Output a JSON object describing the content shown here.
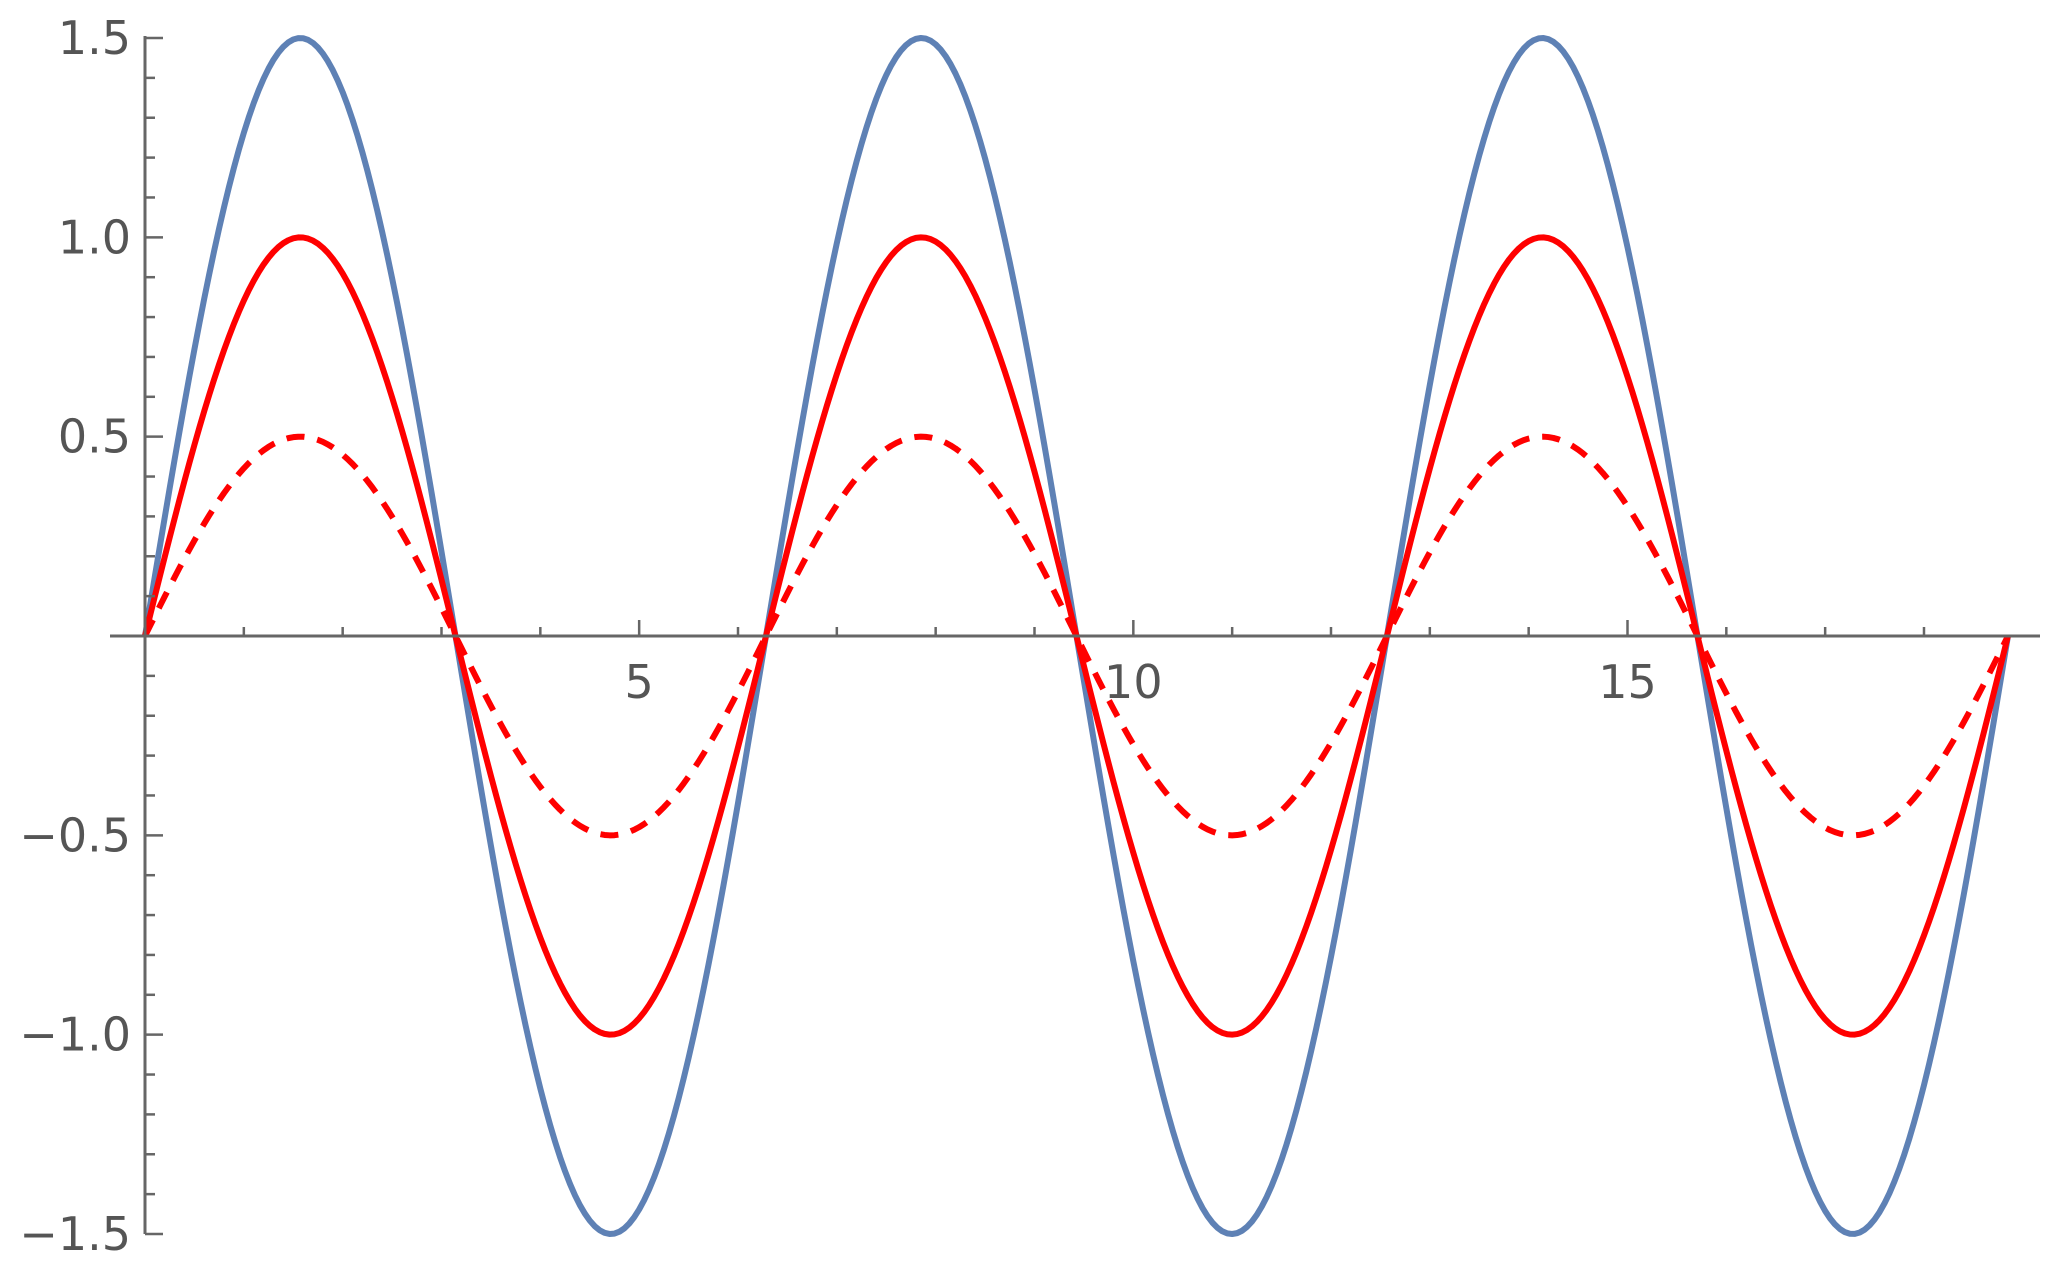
{
  "chart_data": {
    "type": "line",
    "title": "",
    "xlabel": "",
    "ylabel": "",
    "xlim": [
      0,
      18.85
    ],
    "ylim": [
      -1.5,
      1.5
    ],
    "grid": false,
    "x_ticks": [
      5,
      10,
      15
    ],
    "x_tick_labels": [
      "5",
      "10",
      "15"
    ],
    "y_ticks": [
      -1.5,
      -1.0,
      -0.5,
      0.5,
      1.0,
      1.5
    ],
    "y_tick_labels": [
      "−1.5",
      "−1.0",
      "−0.5",
      "0.5",
      "1.0",
      "1.5"
    ],
    "x_minor_step": 1,
    "y_minor_step": 0.1,
    "sample_x_step": 0.05,
    "series": [
      {
        "function": "1.5 sin(x)",
        "amplitude": 1.5,
        "color": "#5E81B5",
        "dash": "solid"
      },
      {
        "function": "sin(x)",
        "amplitude": 1.0,
        "color": "#FF0000",
        "dash": "solid"
      },
      {
        "function": "0.5 sin(x)",
        "amplitude": 0.5,
        "color": "#FF0000",
        "dash": "dashed"
      }
    ]
  }
}
